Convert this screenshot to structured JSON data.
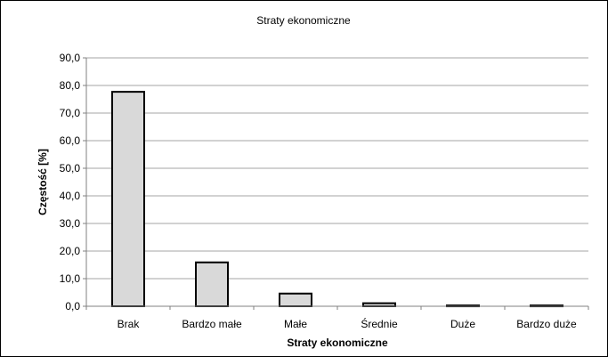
{
  "chart_data": {
    "type": "bar",
    "title": "Straty ekonomiczne",
    "xlabel": "Straty ekonomiczne",
    "ylabel": "Częstość [%]",
    "categories": [
      "Brak",
      "Bardzo małe",
      "Małe",
      "Średnie",
      "Duże",
      "Bardzo duże"
    ],
    "values": [
      77.7,
      15.9,
      4.6,
      1.1,
      0.3,
      0.3
    ],
    "ylim": [
      0,
      90
    ],
    "yticks": [
      "0,0",
      "10,0",
      "20,0",
      "30,0",
      "40,0",
      "50,0",
      "60,0",
      "70,0",
      "80,0",
      "90,0"
    ],
    "grid": true,
    "legend": "none",
    "colors": {
      "bar_fill": "#d9d9d9",
      "bar_stroke": "#000000",
      "grid": "#a6a6a6",
      "axis": "#808080"
    }
  }
}
